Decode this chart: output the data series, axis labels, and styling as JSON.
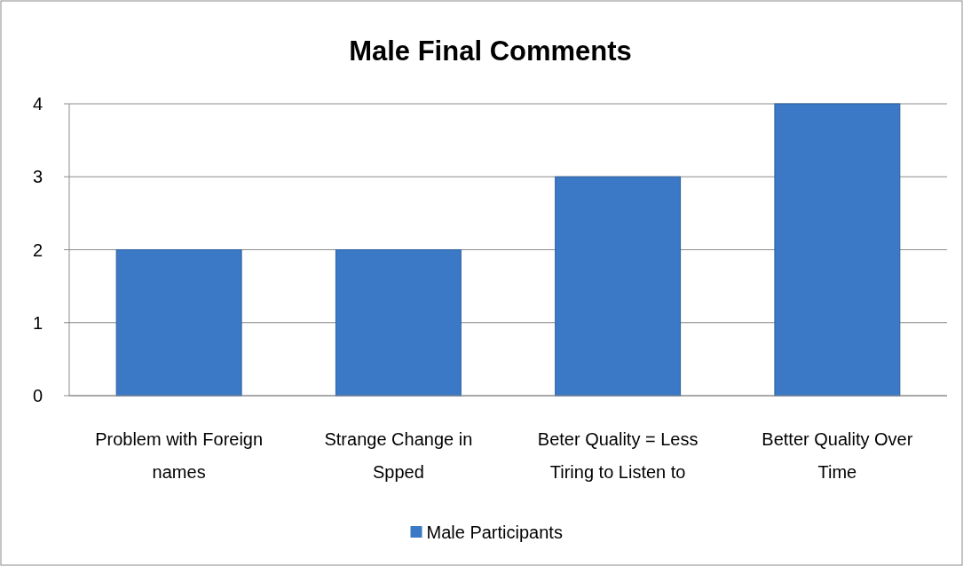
{
  "chart_data": {
    "type": "bar",
    "title": "Male Final Comments",
    "categories": [
      "Problem with Foreign names",
      "Strange Change in Spped",
      "Beter Quality = Less Tiring to Listen to",
      "Better Quality Over Time"
    ],
    "series": [
      {
        "name": "Male Participants",
        "color": "#3b78c6",
        "values": [
          2,
          2,
          3,
          4
        ]
      }
    ],
    "ylim": [
      0,
      4
    ],
    "yticks": [
      0,
      1,
      2,
      3,
      4
    ],
    "grid": "y",
    "legend": "bottom"
  }
}
